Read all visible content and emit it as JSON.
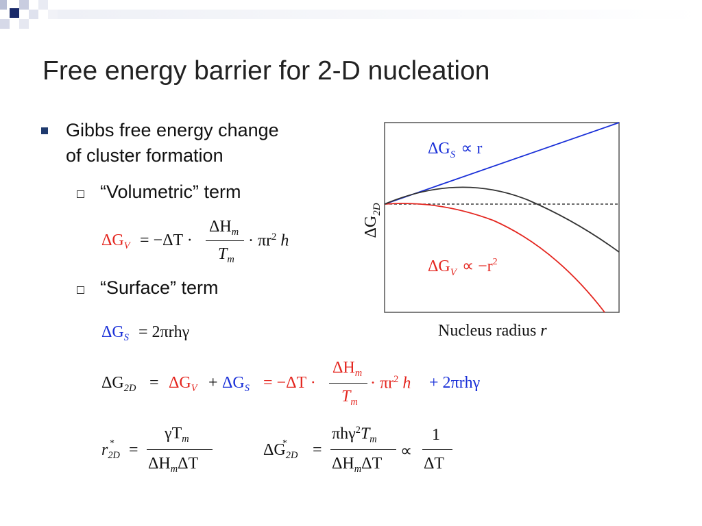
{
  "slide": {
    "title": "Free energy barrier for 2-D nucleation"
  },
  "bullets": {
    "main_line1": "Gibbs free energy change",
    "main_line2": "of cluster formation",
    "volumetric": "“Volumetric” term",
    "surface": "“Surface” term"
  },
  "equations": {
    "dGV_lhs": "ΔG",
    "dGV_sub": "V",
    "dGV_rhs_a": "= −ΔT ·",
    "dGV_num": "ΔH",
    "dGV_num_sub": "m",
    "dGV_den": "T",
    "dGV_den_sub": "m",
    "dGV_rhs_b": "· πr",
    "dGV_rhs_sup": "2",
    "dGV_rhs_c": "h",
    "dGS_lhs": "ΔG",
    "dGS_sub": "S",
    "dGS_rhs": "= 2πrhγ",
    "total_lhs": "ΔG",
    "total_lhs_sub": "2D",
    "total_eq": "=",
    "total_gv": "ΔG",
    "total_gv_sub": "V",
    "total_plus": "+",
    "total_gs": "ΔG",
    "total_gs_sub": "S",
    "total_eq2": "= −ΔT ·",
    "total_num": "ΔH",
    "total_num_sub": "m",
    "total_den": "T",
    "total_den_sub": "m",
    "total_tail_a": "· πr",
    "total_tail_sup": "2",
    "total_tail_b": "h",
    "total_tail_c": "+ 2πrhγ",
    "rstar_lhs": "r",
    "rstar_sup": "*",
    "rstar_sub": "2D",
    "rstar_eq": "=",
    "rstar_num": "γT",
    "rstar_num_sub": "m",
    "rstar_den_a": "ΔH",
    "rstar_den_sub": "m",
    "rstar_den_b": "ΔT",
    "gstar_lhs": "ΔG",
    "gstar_sup": "*",
    "gstar_sub": "2D",
    "gstar_eq": "=",
    "gstar_num_a": "πhγ",
    "gstar_num_sup": "2",
    "gstar_num_b": "T",
    "gstar_num_sub": "m",
    "gstar_den_a": "ΔH",
    "gstar_den_sub": "m",
    "gstar_den_b": "ΔT",
    "gstar_prop": "∝",
    "gstar_num2": "1",
    "gstar_den2": "ΔT"
  },
  "chart": {
    "y_axis_label": "ΔG",
    "y_axis_label_sub": "2D",
    "x_axis_label": "Nucleus radius",
    "x_axis_label_var": "r",
    "label_gs": "ΔG",
    "label_gs_sub": "S",
    "label_gs_rhs": "∝ r",
    "label_gv": "ΔG",
    "label_gv_sub": "V",
    "label_gv_rhs": "∝ −r",
    "label_gv_sup": "2"
  },
  "colors": {
    "accent_navy": "#1f3a6e",
    "surface_line": "#1a30d8",
    "volume_line": "#e4261f",
    "total_line": "#333333"
  }
}
